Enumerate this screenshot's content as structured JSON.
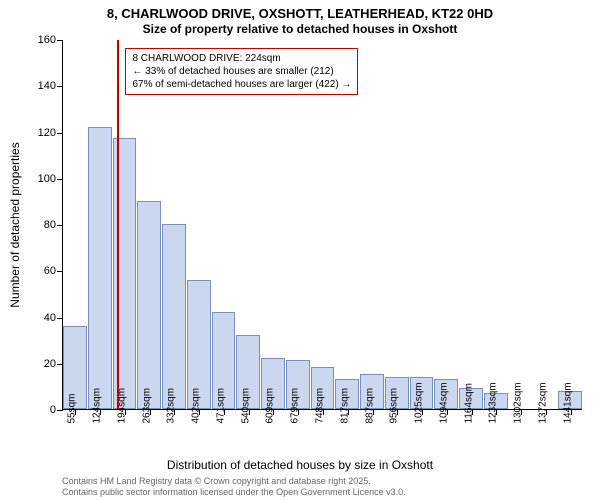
{
  "chart": {
    "type": "histogram",
    "title_main": "8, CHARLWOOD DRIVE, OXSHOTT, LEATHERHEAD, KT22 0HD",
    "title_sub": "Size of property relative to detached houses in Oxshott",
    "title_fontsize": 13,
    "subtitle_fontsize": 12,
    "background_color": "#ffffff",
    "bar_fill": "#cbd7ef",
    "bar_border": "#7a8fbf",
    "ylabel": "Number of detached properties",
    "xlabel": "Distribution of detached houses by size in Oxshott",
    "ylim": [
      0,
      160
    ],
    "ytick_step": 20,
    "yticks": [
      0,
      20,
      40,
      60,
      80,
      100,
      120,
      140,
      160
    ],
    "x_categories": [
      "55sqm",
      "124sqm",
      "194sqm",
      "263sqm",
      "332sqm",
      "402sqm",
      "471sqm",
      "540sqm",
      "609sqm",
      "679sqm",
      "748sqm",
      "817sqm",
      "887sqm",
      "956sqm",
      "1025sqm",
      "1094sqm",
      "1164sqm",
      "1233sqm",
      "1302sqm",
      "1372sqm",
      "1441sqm"
    ],
    "values": [
      36,
      122,
      117,
      90,
      80,
      56,
      42,
      32,
      22,
      21,
      18,
      13,
      15,
      14,
      14,
      13,
      9,
      7,
      0,
      0,
      8
    ],
    "marker": {
      "position_index": 2.0,
      "color": "#c00000",
      "width": 2
    },
    "annotation": {
      "line1": "8 CHARLWOOD DRIVE: 224sqm",
      "line2": "← 33% of detached houses are smaller (212)",
      "line3": "67% of semi-detached houses are larger (422) →",
      "border_color": "#c00000",
      "bg_color": "#ffffff",
      "fontsize": 10
    },
    "footer_line1": "Contains HM Land Registry data © Crown copyright and database right 2025.",
    "footer_line2": "Contains public sector information licensed under the Open Government Licence v3.0.",
    "label_fontsize": 12,
    "tick_fontsize": 10
  }
}
